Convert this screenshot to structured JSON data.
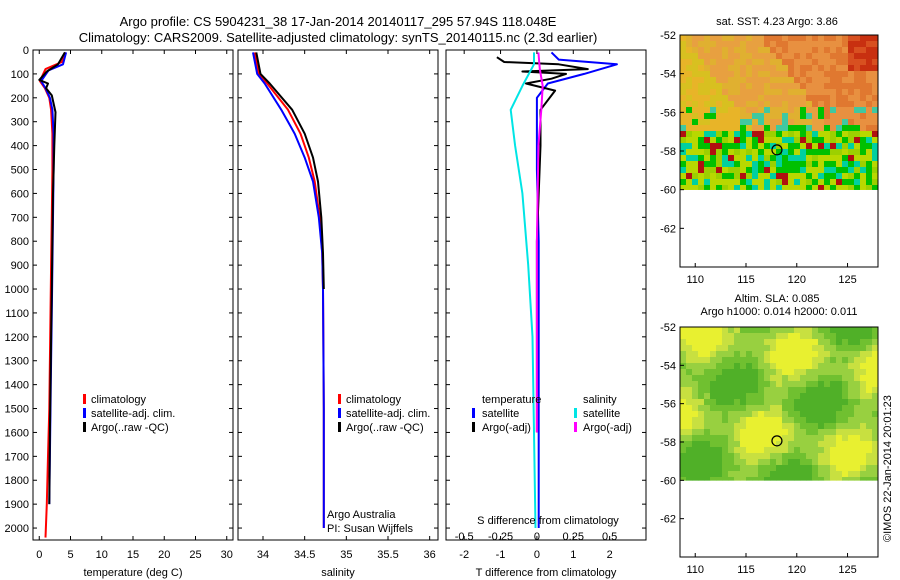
{
  "header": {
    "title_line1": "Argo profile: CS 5904231_38 17-Jan-2014 20140117_295 57.94S 118.048E",
    "title_line2": "Climatology: CARS2009. Satellite-adjusted climatology: synTS_20140115.nc (2.3d earlier)"
  },
  "colors": {
    "climatology": "#ff0000",
    "satellite": "#0000ff",
    "argo": "#000000",
    "sal_satellite": "#00e5e5",
    "sal_argo": "#ff00ff"
  },
  "chart_data": [
    {
      "id": "temperature",
      "type": "line",
      "xlabel": "temperature (deg C)",
      "xlim": [
        -1,
        31
      ],
      "xticks": [
        0,
        5,
        10,
        15,
        20,
        25,
        30
      ],
      "ylim": [
        2050,
        0
      ],
      "yticks": [
        0,
        100,
        200,
        300,
        400,
        500,
        600,
        700,
        800,
        900,
        1000,
        1100,
        1200,
        1300,
        1400,
        1500,
        1600,
        1700,
        1800,
        1900,
        2000
      ],
      "legend": [
        "climatology",
        "satellite-adj. clim.",
        "Argo(..raw -QC)"
      ],
      "series": [
        {
          "name": "climatology",
          "color": "#ff0000",
          "x": [
            4.2,
            3.6,
            1.0,
            0.1,
            0.9,
            1.6,
            1.9,
            2.1,
            2.1,
            2.0,
            1.9,
            1.8,
            1.7,
            1.6,
            1.4,
            1.2,
            1.0
          ],
          "y": [
            10,
            50,
            80,
            130,
            160,
            200,
            250,
            350,
            500,
            700,
            900,
            1100,
            1300,
            1500,
            1700,
            1900,
            2040
          ]
        },
        {
          "name": "satellite-adj. clim.",
          "color": "#0000ff",
          "x": [
            4.3,
            3.8,
            1.5,
            0.3,
            1.0,
            1.7,
            2.1,
            2.3,
            2.3,
            2.2,
            2.1,
            2.0,
            1.9,
            1.8,
            1.7,
            1.6
          ],
          "y": [
            10,
            60,
            85,
            130,
            160,
            200,
            250,
            350,
            500,
            700,
            900,
            1100,
            1300,
            1500,
            1700,
            1900
          ]
        },
        {
          "name": "Argo(..raw -QC)",
          "color": "#000000",
          "x": [
            4.1,
            3.0,
            1.2,
            0.0,
            1.4,
            1.1,
            2.0,
            2.6,
            2.4,
            2.2,
            2.1,
            2.0,
            1.9,
            1.8,
            1.7,
            1.6
          ],
          "y": [
            10,
            60,
            90,
            125,
            140,
            160,
            190,
            260,
            400,
            600,
            800,
            1000,
            1200,
            1400,
            1600,
            1900
          ]
        }
      ]
    },
    {
      "id": "salinity",
      "type": "line",
      "xlabel": "salinity",
      "xlim": [
        33.7,
        36.1
      ],
      "xticks": [
        34,
        34.5,
        35,
        35.5,
        36
      ],
      "xticklabels": [
        "34",
        "34.5",
        "35",
        "35.5",
        "36"
      ],
      "ylim": [
        2050,
        0
      ],
      "legend": [
        "climatology",
        "satellite-adj. clim.",
        "Argo(..raw -QC)"
      ],
      "series": [
        {
          "name": "climatology",
          "color": "#ff0000",
          "x": [
            33.9,
            33.95,
            34.05,
            34.3,
            34.45,
            34.55,
            34.62,
            34.68,
            34.71,
            34.72,
            34.73,
            34.73
          ],
          "y": [
            10,
            100,
            140,
            250,
            350,
            450,
            550,
            700,
            850,
            1000,
            1500,
            2000
          ]
        },
        {
          "name": "satellite-adj. clim.",
          "color": "#0000ff",
          "x": [
            33.88,
            33.93,
            34.02,
            34.22,
            34.38,
            34.5,
            34.6,
            34.67,
            34.71,
            34.72,
            34.73,
            34.73
          ],
          "y": [
            10,
            100,
            140,
            250,
            350,
            450,
            550,
            700,
            850,
            1000,
            1500,
            2000
          ]
        },
        {
          "name": "Argo(..raw -QC)",
          "color": "#000000",
          "x": [
            33.92,
            33.97,
            34.08,
            34.35,
            34.5,
            34.6,
            34.66,
            34.7,
            34.72,
            34.73
          ],
          "y": [
            10,
            100,
            140,
            250,
            350,
            450,
            550,
            700,
            850,
            1000
          ]
        }
      ],
      "annotations": [
        "Argo Australia",
        "PI: Susan Wijffels"
      ]
    },
    {
      "id": "difference",
      "type": "line",
      "xlabel": "T difference from climatology",
      "xlim": [
        -2.5,
        3
      ],
      "xticks": [
        -2,
        -1,
        0,
        1,
        2
      ],
      "top_label": "S difference from climatology",
      "top_ticks": [
        -0.5,
        -0.25,
        0,
        0.25,
        0.5
      ],
      "top_ticklabels": [
        "-0.5",
        "-0.25",
        "0",
        "0.25",
        "0.5"
      ],
      "ylim": [
        2050,
        0
      ],
      "legend_temperature": {
        "heading": "temperature",
        "items": [
          "satellite",
          "Argo(-adj)"
        ]
      },
      "legend_salinity": {
        "heading": "salinity",
        "items": [
          "satellite",
          "Argo(-adj)"
        ]
      },
      "series": [
        {
          "name": "temperature satellite",
          "color": "#0000ff",
          "x": [
            0.4,
            0.6,
            2.2,
            1.3,
            0.3,
            0.0,
            0.0,
            0.0,
            0.05,
            0.05,
            0.05,
            0.05
          ],
          "y": [
            10,
            40,
            60,
            100,
            140,
            200,
            300,
            500,
            800,
            1200,
            1600,
            2000
          ]
        },
        {
          "name": "temperature Argo(-adj)",
          "color": "#000000",
          "x": [
            -1.1,
            -0.9,
            0.6,
            1.4,
            -0.4,
            0.8,
            0.4,
            -0.3,
            0.5,
            0.1,
            0.1,
            0.0,
            0.0,
            0.0
          ],
          "y": [
            30,
            50,
            60,
            80,
            90,
            100,
            120,
            140,
            170,
            250,
            400,
            800,
            1200,
            1600
          ]
        },
        {
          "name": "salinity satellite",
          "color": "#00e5e5",
          "x": [
            -0.02,
            -0.02,
            -0.1,
            -0.18,
            -0.15,
            -0.1,
            -0.06,
            -0.03,
            -0.02,
            -0.01
          ],
          "y": [
            10,
            60,
            150,
            250,
            400,
            600,
            900,
            1200,
            1600,
            2000
          ]
        },
        {
          "name": "salinity Argo(-adj)",
          "color": "#ff00ff",
          "x": [
            0.01,
            0.02,
            0.04,
            0.03,
            0.01,
            0.0,
            0.0,
            0.0
          ],
          "y": [
            10,
            80,
            150,
            250,
            400,
            800,
            1200,
            1600
          ]
        }
      ]
    },
    {
      "id": "sst_map",
      "type": "heatmap",
      "title": "sat. SST: 4.23 Argo: 3.86",
      "xlim": [
        108.5,
        128
      ],
      "ylim": [
        -64,
        -52
      ],
      "xticks": [
        110,
        115,
        120,
        125
      ],
      "yticks": [
        -52,
        -54,
        -56,
        -58,
        -60,
        -62
      ],
      "data_extent_lat": [
        -60,
        -52
      ],
      "argo_position": [
        118.048,
        -57.94
      ]
    },
    {
      "id": "sla_map",
      "type": "heatmap",
      "title_line1": "Altim. SLA: 0.085",
      "title_line2": "Argo h1000: 0.014 h2000: 0.011",
      "xlim": [
        108.5,
        128
      ],
      "ylim": [
        -64,
        -52
      ],
      "xticks": [
        110,
        115,
        120,
        125
      ],
      "yticks": [
        -52,
        -54,
        -56,
        -58,
        -60,
        -62
      ],
      "data_extent_lat": [
        -60,
        -52
      ],
      "argo_position": [
        118.048,
        -57.94
      ]
    }
  ],
  "footer": {
    "credit": "©IMOS 22-Jan-2014 20:01:23"
  }
}
